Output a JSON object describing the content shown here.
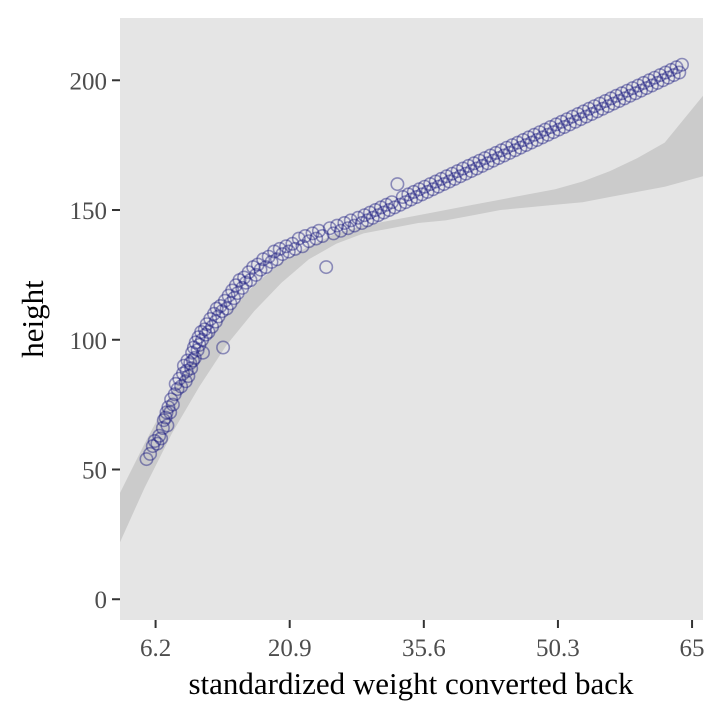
{
  "chart_data": {
    "type": "scatter",
    "title": "",
    "xlabel": "standardized weight converted back",
    "ylabel": "height",
    "xlim": [
      2.3,
      66.2
    ],
    "ylim": [
      -8,
      224
    ],
    "x_ticks": [
      {
        "value": 6.2,
        "label": "6.2"
      },
      {
        "value": 20.9,
        "label": "20.9"
      },
      {
        "value": 35.6,
        "label": "35.6"
      },
      {
        "value": 50.3,
        "label": "50.3"
      },
      {
        "value": 65,
        "label": "65"
      }
    ],
    "y_ticks": [
      {
        "value": 0,
        "label": "0"
      },
      {
        "value": 50,
        "label": "50"
      },
      {
        "value": 100,
        "label": "100"
      },
      {
        "value": 150,
        "label": "150"
      },
      {
        "value": 200,
        "label": "200"
      }
    ],
    "grid": false,
    "colors": {
      "panel_background": "#e5e5e5",
      "point_stroke": "#1a1a80",
      "ribbon_fill": "#cbcbcb",
      "tick_label": "#4d4d4d"
    },
    "ribbon": {
      "x": [
        2.3,
        5,
        8,
        11,
        14,
        17,
        20,
        23,
        26,
        29,
        32,
        35,
        38,
        41,
        44,
        47,
        50,
        53,
        56,
        59,
        62,
        66.2
      ],
      "lower": [
        22,
        43,
        64,
        82,
        98,
        111,
        122,
        131,
        137,
        141,
        143,
        145,
        146,
        148,
        150,
        151,
        152,
        153,
        155,
        157,
        159,
        163
      ],
      "upper": [
        41,
        60,
        80,
        96,
        110,
        121,
        130,
        136,
        141,
        144,
        146,
        148,
        150,
        152,
        154,
        156,
        158,
        161,
        165,
        170,
        176,
        194
      ]
    },
    "points": [
      [
        5.2,
        54
      ],
      [
        5.6,
        56
      ],
      [
        5.9,
        59
      ],
      [
        6.1,
        61
      ],
      [
        6.4,
        60
      ],
      [
        6.6,
        63
      ],
      [
        6.8,
        62
      ],
      [
        7.0,
        66
      ],
      [
        7.1,
        69
      ],
      [
        7.3,
        70
      ],
      [
        7.4,
        72
      ],
      [
        7.5,
        67
      ],
      [
        7.6,
        74
      ],
      [
        7.8,
        72
      ],
      [
        7.9,
        77
      ],
      [
        8.1,
        75
      ],
      [
        8.3,
        79
      ],
      [
        8.4,
        83
      ],
      [
        8.6,
        81
      ],
      [
        8.8,
        85
      ],
      [
        9.0,
        82
      ],
      [
        9.2,
        87
      ],
      [
        9.3,
        90
      ],
      [
        9.5,
        84
      ],
      [
        9.6,
        88
      ],
      [
        9.7,
        92
      ],
      [
        9.8,
        86
      ],
      [
        10.0,
        91
      ],
      [
        10.1,
        89
      ],
      [
        10.2,
        95
      ],
      [
        10.3,
        92
      ],
      [
        10.4,
        97
      ],
      [
        10.5,
        93
      ],
      [
        10.6,
        99
      ],
      [
        10.8,
        96
      ],
      [
        10.9,
        101
      ],
      [
        11.0,
        98
      ],
      [
        11.2,
        103
      ],
      [
        11.3,
        100
      ],
      [
        11.4,
        95
      ],
      [
        11.6,
        104
      ],
      [
        11.7,
        102
      ],
      [
        11.8,
        106
      ],
      [
        12.0,
        103
      ],
      [
        12.2,
        108
      ],
      [
        12.4,
        105
      ],
      [
        12.6,
        110
      ],
      [
        12.8,
        107
      ],
      [
        12.9,
        112
      ],
      [
        13.1,
        109
      ],
      [
        13.3,
        113
      ],
      [
        13.5,
        111
      ],
      [
        13.6,
        97
      ],
      [
        13.8,
        115
      ],
      [
        14.0,
        112
      ],
      [
        14.2,
        117
      ],
      [
        14.4,
        114
      ],
      [
        14.6,
        119
      ],
      [
        14.8,
        116
      ],
      [
        15.0,
        121
      ],
      [
        15.2,
        118
      ],
      [
        15.4,
        123
      ],
      [
        15.7,
        120
      ],
      [
        15.9,
        124
      ],
      [
        16.1,
        122
      ],
      [
        16.4,
        126
      ],
      [
        16.6,
        123
      ],
      [
        16.9,
        128
      ],
      [
        17.2,
        125
      ],
      [
        17.4,
        129
      ],
      [
        17.7,
        127
      ],
      [
        18.0,
        131
      ],
      [
        18.3,
        128
      ],
      [
        18.6,
        132
      ],
      [
        18.9,
        130
      ],
      [
        19.2,
        134
      ],
      [
        19.5,
        131
      ],
      [
        19.8,
        135
      ],
      [
        20.1,
        133
      ],
      [
        20.5,
        136
      ],
      [
        20.8,
        134
      ],
      [
        21.2,
        137
      ],
      [
        21.5,
        135
      ],
      [
        21.9,
        139
      ],
      [
        22.3,
        136
      ],
      [
        22.6,
        140
      ],
      [
        23.0,
        138
      ],
      [
        23.4,
        141
      ],
      [
        23.8,
        139
      ],
      [
        24.1,
        142
      ],
      [
        24.5,
        140
      ],
      [
        24.9,
        128
      ],
      [
        25.3,
        143
      ],
      [
        25.7,
        141
      ],
      [
        26.1,
        144
      ],
      [
        26.5,
        142
      ],
      [
        26.9,
        145
      ],
      [
        27.3,
        143
      ],
      [
        27.6,
        146
      ],
      [
        28.0,
        144
      ],
      [
        28.4,
        147
      ],
      [
        28.8,
        145
      ],
      [
        29.1,
        148
      ],
      [
        29.4,
        146
      ],
      [
        29.7,
        149
      ],
      [
        30.0,
        147
      ],
      [
        30.3,
        150
      ],
      [
        30.6,
        148
      ],
      [
        30.9,
        151
      ],
      [
        31.2,
        149
      ],
      [
        31.5,
        152
      ],
      [
        31.8,
        150
      ],
      [
        32.1,
        153
      ],
      [
        32.4,
        151
      ],
      [
        32.7,
        160
      ],
      [
        33.0,
        152
      ],
      [
        33.3,
        155
      ],
      [
        33.6,
        153
      ],
      [
        33.9,
        156
      ],
      [
        34.2,
        154
      ],
      [
        34.5,
        157
      ],
      [
        34.8,
        155
      ],
      [
        35.1,
        158
      ],
      [
        35.4,
        156
      ],
      [
        35.7,
        159
      ],
      [
        36.0,
        157
      ],
      [
        36.3,
        160
      ],
      [
        36.6,
        158
      ],
      [
        36.9,
        161
      ],
      [
        37.2,
        159
      ],
      [
        37.5,
        162
      ],
      [
        37.8,
        160
      ],
      [
        38.1,
        163
      ],
      [
        38.4,
        161
      ],
      [
        38.7,
        164
      ],
      [
        39.0,
        162
      ],
      [
        39.3,
        165
      ],
      [
        39.6,
        163
      ],
      [
        39.9,
        166
      ],
      [
        40.2,
        164
      ],
      [
        40.5,
        167
      ],
      [
        40.8,
        165
      ],
      [
        41.1,
        168
      ],
      [
        41.4,
        166
      ],
      [
        41.7,
        169
      ],
      [
        42.0,
        167
      ],
      [
        42.3,
        170
      ],
      [
        42.6,
        168
      ],
      [
        42.9,
        171
      ],
      [
        43.2,
        169
      ],
      [
        43.5,
        172
      ],
      [
        43.8,
        170
      ],
      [
        44.1,
        173
      ],
      [
        44.4,
        171
      ],
      [
        44.7,
        174
      ],
      [
        45.0,
        172
      ],
      [
        45.3,
        175
      ],
      [
        45.6,
        173
      ],
      [
        45.9,
        176
      ],
      [
        46.2,
        174
      ],
      [
        46.5,
        177
      ],
      [
        46.8,
        175
      ],
      [
        47.1,
        178
      ],
      [
        47.4,
        176
      ],
      [
        47.7,
        179
      ],
      [
        48.0,
        177
      ],
      [
        48.3,
        180
      ],
      [
        48.6,
        178
      ],
      [
        48.9,
        181
      ],
      [
        49.2,
        179
      ],
      [
        49.5,
        182
      ],
      [
        49.8,
        180
      ],
      [
        50.1,
        183
      ],
      [
        50.4,
        181
      ],
      [
        50.7,
        184
      ],
      [
        51.0,
        182
      ],
      [
        51.3,
        185
      ],
      [
        51.6,
        183
      ],
      [
        51.9,
        186
      ],
      [
        52.2,
        184
      ],
      [
        52.5,
        187
      ],
      [
        52.8,
        185
      ],
      [
        53.1,
        188
      ],
      [
        53.4,
        186
      ],
      [
        53.7,
        189
      ],
      [
        54.0,
        187
      ],
      [
        54.3,
        190
      ],
      [
        54.6,
        188
      ],
      [
        54.9,
        191
      ],
      [
        55.2,
        189
      ],
      [
        55.5,
        192
      ],
      [
        55.8,
        190
      ],
      [
        56.1,
        193
      ],
      [
        56.4,
        191
      ],
      [
        56.7,
        194
      ],
      [
        57.0,
        192
      ],
      [
        57.3,
        195
      ],
      [
        57.6,
        193
      ],
      [
        57.9,
        196
      ],
      [
        58.2,
        194
      ],
      [
        58.5,
        197
      ],
      [
        58.8,
        195
      ],
      [
        59.1,
        198
      ],
      [
        59.4,
        196
      ],
      [
        59.7,
        199
      ],
      [
        60.0,
        197
      ],
      [
        60.3,
        200
      ],
      [
        60.6,
        198
      ],
      [
        60.9,
        201
      ],
      [
        61.2,
        199
      ],
      [
        61.5,
        202
      ],
      [
        61.8,
        200
      ],
      [
        62.1,
        203
      ],
      [
        62.4,
        201
      ],
      [
        62.7,
        204
      ],
      [
        63.0,
        202
      ],
      [
        63.3,
        205
      ],
      [
        63.6,
        203
      ],
      [
        63.9,
        206
      ]
    ]
  }
}
